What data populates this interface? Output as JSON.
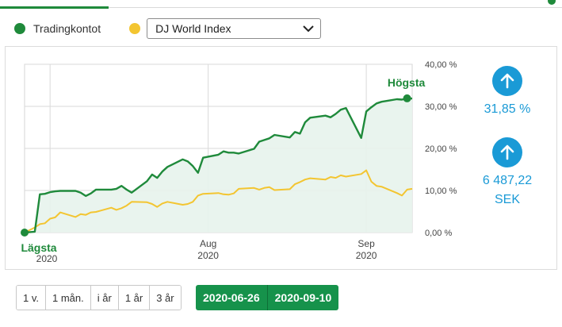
{
  "legend": {
    "series_account_label": "Tradingkontot",
    "compare_index_selected": "DJ World Index"
  },
  "colors": {
    "account": "#1f8a3b",
    "index": "#f3c531",
    "accent": "#1a9ad6",
    "area_fill": "#e7f3ec",
    "date_button": "#16924b"
  },
  "chart_data": {
    "type": "line",
    "y_unit": "%",
    "ylim": [
      0,
      40
    ],
    "xlim": [
      "2020-06-26",
      "2020-09-10"
    ],
    "y_ticks": [
      "40,00 %",
      "30,00 %",
      "20,00 %",
      "10,00 %",
      "0,00 %"
    ],
    "x_ticks": [
      {
        "date": "2020-07-01",
        "label_top": "",
        "label_bottom": ""
      },
      {
        "date": "2020-08-01",
        "label_top": "Aug",
        "label_bottom": "2020"
      },
      {
        "date": "2020-09-01",
        "label_top": "Sep",
        "label_bottom": "2020"
      }
    ],
    "grid": true,
    "annotations": {
      "low_label": "Lägsta",
      "low_year": "2020",
      "high_label": "Högsta"
    },
    "series": [
      {
        "key": "account",
        "fill_area": true,
        "x": [
          "2020-06-26",
          "2020-06-28",
          "2020-06-29",
          "2020-06-30",
          "2020-07-01",
          "2020-07-02",
          "2020-07-03",
          "2020-07-06",
          "2020-07-07",
          "2020-07-08",
          "2020-07-09",
          "2020-07-10",
          "2020-07-13",
          "2020-07-14",
          "2020-07-15",
          "2020-07-16",
          "2020-07-17",
          "2020-07-20",
          "2020-07-21",
          "2020-07-22",
          "2020-07-23",
          "2020-07-24",
          "2020-07-27",
          "2020-07-28",
          "2020-07-29",
          "2020-07-30",
          "2020-07-31",
          "2020-08-03",
          "2020-08-04",
          "2020-08-05",
          "2020-08-06",
          "2020-08-07",
          "2020-08-10",
          "2020-08-11",
          "2020-08-12",
          "2020-08-13",
          "2020-08-14",
          "2020-08-17",
          "2020-08-18",
          "2020-08-19",
          "2020-08-20",
          "2020-08-21",
          "2020-08-24",
          "2020-08-25",
          "2020-08-26",
          "2020-08-27",
          "2020-08-28",
          "2020-08-31",
          "2020-09-01",
          "2020-09-02",
          "2020-09-03",
          "2020-09-04",
          "2020-09-07",
          "2020-09-08",
          "2020-09-09",
          "2020-09-10"
        ],
        "values": [
          0.0,
          0.2,
          9.1,
          9.2,
          9.6,
          9.8,
          9.9,
          9.9,
          9.5,
          8.7,
          9.3,
          10.2,
          10.2,
          10.4,
          11.1,
          10.2,
          9.5,
          12.2,
          13.8,
          13.0,
          14.5,
          15.6,
          17.4,
          16.9,
          15.8,
          14.2,
          17.8,
          18.5,
          19.3,
          19.0,
          19.0,
          18.8,
          19.9,
          21.6,
          22.0,
          22.4,
          23.2,
          22.6,
          23.9,
          23.5,
          26.2,
          27.3,
          27.8,
          27.4,
          28.2,
          29.2,
          29.6,
          22.5,
          28.8,
          29.8,
          30.7,
          31.1,
          31.7,
          31.6,
          31.9,
          31.85
        ]
      },
      {
        "key": "index",
        "fill_area": false,
        "x": [
          "2020-06-26",
          "2020-06-28",
          "2020-06-29",
          "2020-06-30",
          "2020-07-01",
          "2020-07-02",
          "2020-07-03",
          "2020-07-06",
          "2020-07-07",
          "2020-07-08",
          "2020-07-09",
          "2020-07-10",
          "2020-07-13",
          "2020-07-14",
          "2020-07-15",
          "2020-07-16",
          "2020-07-17",
          "2020-07-20",
          "2020-07-21",
          "2020-07-22",
          "2020-07-23",
          "2020-07-24",
          "2020-07-27",
          "2020-07-28",
          "2020-07-29",
          "2020-07-30",
          "2020-07-31",
          "2020-08-03",
          "2020-08-04",
          "2020-08-05",
          "2020-08-06",
          "2020-08-07",
          "2020-08-10",
          "2020-08-11",
          "2020-08-12",
          "2020-08-13",
          "2020-08-14",
          "2020-08-17",
          "2020-08-18",
          "2020-08-19",
          "2020-08-20",
          "2020-08-21",
          "2020-08-24",
          "2020-08-25",
          "2020-08-26",
          "2020-08-27",
          "2020-08-28",
          "2020-08-31",
          "2020-09-01",
          "2020-09-02",
          "2020-09-03",
          "2020-09-04",
          "2020-09-07",
          "2020-09-08",
          "2020-09-09",
          "2020-09-10"
        ],
        "values": [
          0.0,
          1.2,
          2.0,
          2.2,
          3.3,
          3.6,
          4.8,
          3.7,
          4.4,
          4.2,
          4.8,
          4.9,
          5.9,
          5.4,
          5.8,
          6.4,
          7.3,
          7.2,
          6.8,
          6.1,
          6.9,
          7.3,
          6.6,
          6.8,
          7.3,
          8.8,
          9.2,
          9.4,
          9.1,
          9.0,
          9.3,
          10.4,
          10.6,
          10.2,
          10.6,
          10.8,
          10.1,
          10.3,
          11.5,
          12.0,
          12.6,
          12.9,
          12.6,
          13.2,
          13.0,
          13.6,
          13.3,
          13.9,
          14.8,
          12.1,
          11.1,
          10.9,
          9.4,
          8.8,
          10.2,
          10.4
        ]
      }
    ]
  },
  "stats": {
    "return_percent": "31,85 %",
    "return_amount": "6 487,22",
    "return_currency": "SEK"
  },
  "range_buttons": [
    "1 v.",
    "1 mån.",
    "i år",
    "1 år",
    "3 år"
  ],
  "date_range": {
    "from": "2020-06-26",
    "to": "2020-09-10"
  }
}
